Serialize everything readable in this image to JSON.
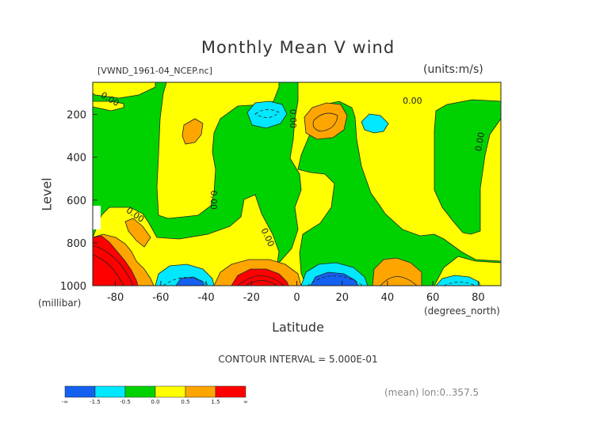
{
  "chart_data": {
    "type": "contour",
    "title": "Monthly Mean V wind",
    "file_label": "[VWND_1961-04_NCEP.nc]",
    "units_label": "(units:m/s)",
    "xlabel": "Latitude",
    "x_units": "(degrees_north)",
    "ylabel": "Level",
    "y_units": "(millibar)",
    "xlim": [
      -90,
      90
    ],
    "ylim": [
      1000,
      50
    ],
    "y_inverted": true,
    "x_ticks": [
      -80,
      -60,
      -40,
      -20,
      0,
      20,
      40,
      60,
      80
    ],
    "y_ticks": [
      200,
      400,
      600,
      800,
      1000
    ],
    "x_tick_labels": [
      "-80",
      "-60",
      "-40",
      "-20",
      "0",
      "20",
      "40",
      "60",
      "80"
    ],
    "y_tick_labels": [
      "200",
      "400",
      "600",
      "800",
      "1000"
    ],
    "contour_interval_text": "CONTOUR INTERVAL = 5.000E-01",
    "contour_labels": [
      "0.00",
      "0.00",
      "0.00",
      "0.00",
      "0.00",
      "0.00",
      "0.00"
    ],
    "colorbar": {
      "colors": [
        "#1460f0",
        "#00e8ff",
        "#00d200",
        "#ffff00",
        "#ffa500",
        "#ff0000"
      ],
      "labels": [
        "-∞",
        "-1.5",
        "-0.5",
        "0.0",
        "0.5",
        "1.5",
        "∞"
      ]
    },
    "mean_note": "(mean) lon:0..357.5"
  }
}
